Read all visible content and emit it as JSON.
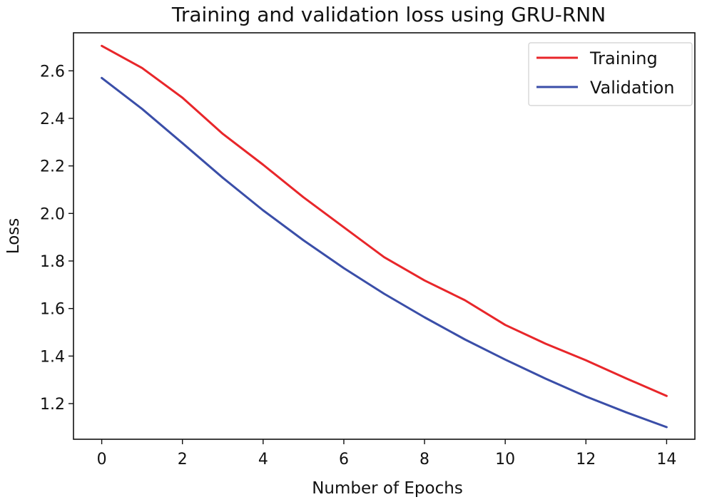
{
  "chart_data": {
    "type": "line",
    "title": "Training and validation loss using GRU-RNN",
    "xlabel": "Number of Epochs",
    "ylabel": "Loss",
    "x": [
      0,
      1,
      2,
      3,
      4,
      5,
      6,
      7,
      8,
      9,
      10,
      11,
      12,
      13,
      14
    ],
    "xlim": [
      -0.7,
      14.7
    ],
    "ylim": [
      1.05,
      2.76
    ],
    "xticks": [
      0,
      2,
      4,
      6,
      8,
      10,
      12,
      14
    ],
    "yticks": [
      1.2,
      1.4,
      1.6,
      1.8,
      2.0,
      2.2,
      2.4,
      2.6
    ],
    "ytick_labels": [
      "1.2",
      "1.4",
      "1.6",
      "1.8",
      "2.0",
      "2.2",
      "2.4",
      "2.6"
    ],
    "xtick_labels": [
      "0",
      "2",
      "4",
      "6",
      "8",
      "10",
      "12",
      "14"
    ],
    "grid": false,
    "legend_position": "top-right",
    "series": [
      {
        "name": "Training",
        "color": "#e8262a",
        "values": [
          2.705,
          2.612,
          2.487,
          2.335,
          2.205,
          2.068,
          1.942,
          1.816,
          1.718,
          1.635,
          1.531,
          1.452,
          1.382,
          1.306,
          1.232
        ]
      },
      {
        "name": "Validation",
        "color": "#3a4ea8",
        "values": [
          2.57,
          2.44,
          2.296,
          2.15,
          2.013,
          1.887,
          1.77,
          1.662,
          1.563,
          1.47,
          1.385,
          1.305,
          1.23,
          1.163,
          1.101
        ]
      }
    ]
  }
}
